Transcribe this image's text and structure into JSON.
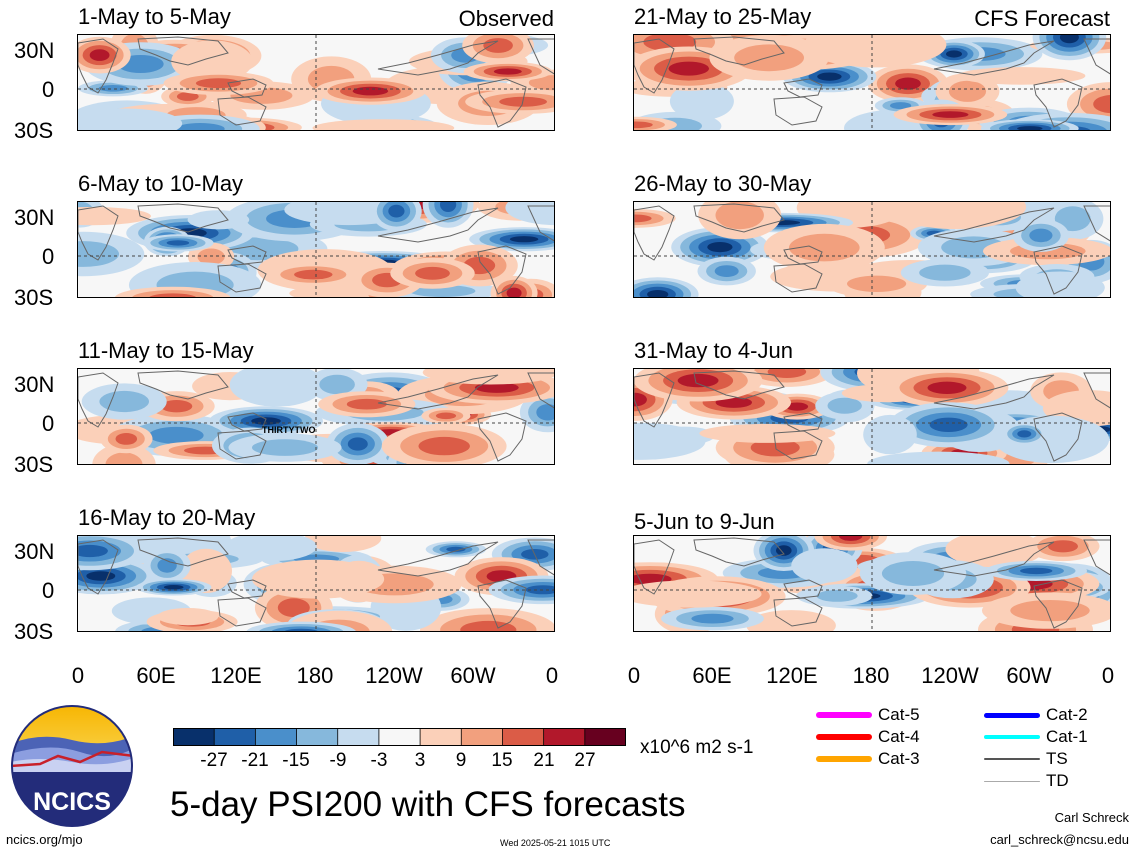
{
  "headers": {
    "observed": "Observed",
    "forecast": "CFS Forecast"
  },
  "panels": [
    {
      "title": "1-May to 5-May",
      "seed": 1
    },
    {
      "title": "21-May to 25-May",
      "seed": 2
    },
    {
      "title": "6-May to 10-May",
      "seed": 3
    },
    {
      "title": "26-May to 30-May",
      "seed": 4
    },
    {
      "title": "11-May to 15-May",
      "seed": 5,
      "annotation": "THIRTYTWO"
    },
    {
      "title": "31-May to 4-Jun",
      "seed": 6
    },
    {
      "title": "16-May to 20-May",
      "seed": 7
    },
    {
      "title": "5-Jun to 9-Jun",
      "seed": 8
    }
  ],
  "lat_labels": [
    "30N",
    "0",
    "30S"
  ],
  "lon_labels": [
    "0",
    "60E",
    "120E",
    "180",
    "120W",
    "60W",
    "0"
  ],
  "colorbar": {
    "ticks": [
      "-27",
      "-21",
      "-15",
      "-9",
      "-3",
      "3",
      "9",
      "15",
      "21",
      "27"
    ],
    "colors": [
      "#08306b",
      "#1f5fa8",
      "#4a8fcb",
      "#86b8dc",
      "#c6dcef",
      "#f7f7f7",
      "#fbd0b9",
      "#f2a07e",
      "#db5c47",
      "#b2182b",
      "#67001f"
    ],
    "units": "x10^6 m2 s-1"
  },
  "legend": [
    {
      "label": "Cat-5",
      "color": "#ff00ff",
      "width": 6
    },
    {
      "label": "Cat-4",
      "color": "#ff0000",
      "width": 6
    },
    {
      "label": "Cat-3",
      "color": "#ffa500",
      "width": 6
    },
    {
      "label": "Cat-2",
      "color": "#0000ff",
      "width": 5
    },
    {
      "label": "Cat-1",
      "color": "#00ffff",
      "width": 4
    },
    {
      "label": "TS",
      "color": "#555555",
      "width": 2
    },
    {
      "label": "TD",
      "color": "#aaaaaa",
      "width": 1
    }
  ],
  "logo_text": "NCICS",
  "main_title": "5-day PSI200 with CFS forecasts",
  "author": "Carl Schreck",
  "email": "carl_schreck@ncsu.edu",
  "website": "ncics.org/mjo",
  "timestamp": "Wed 2025-05-21 1015 UTC"
}
